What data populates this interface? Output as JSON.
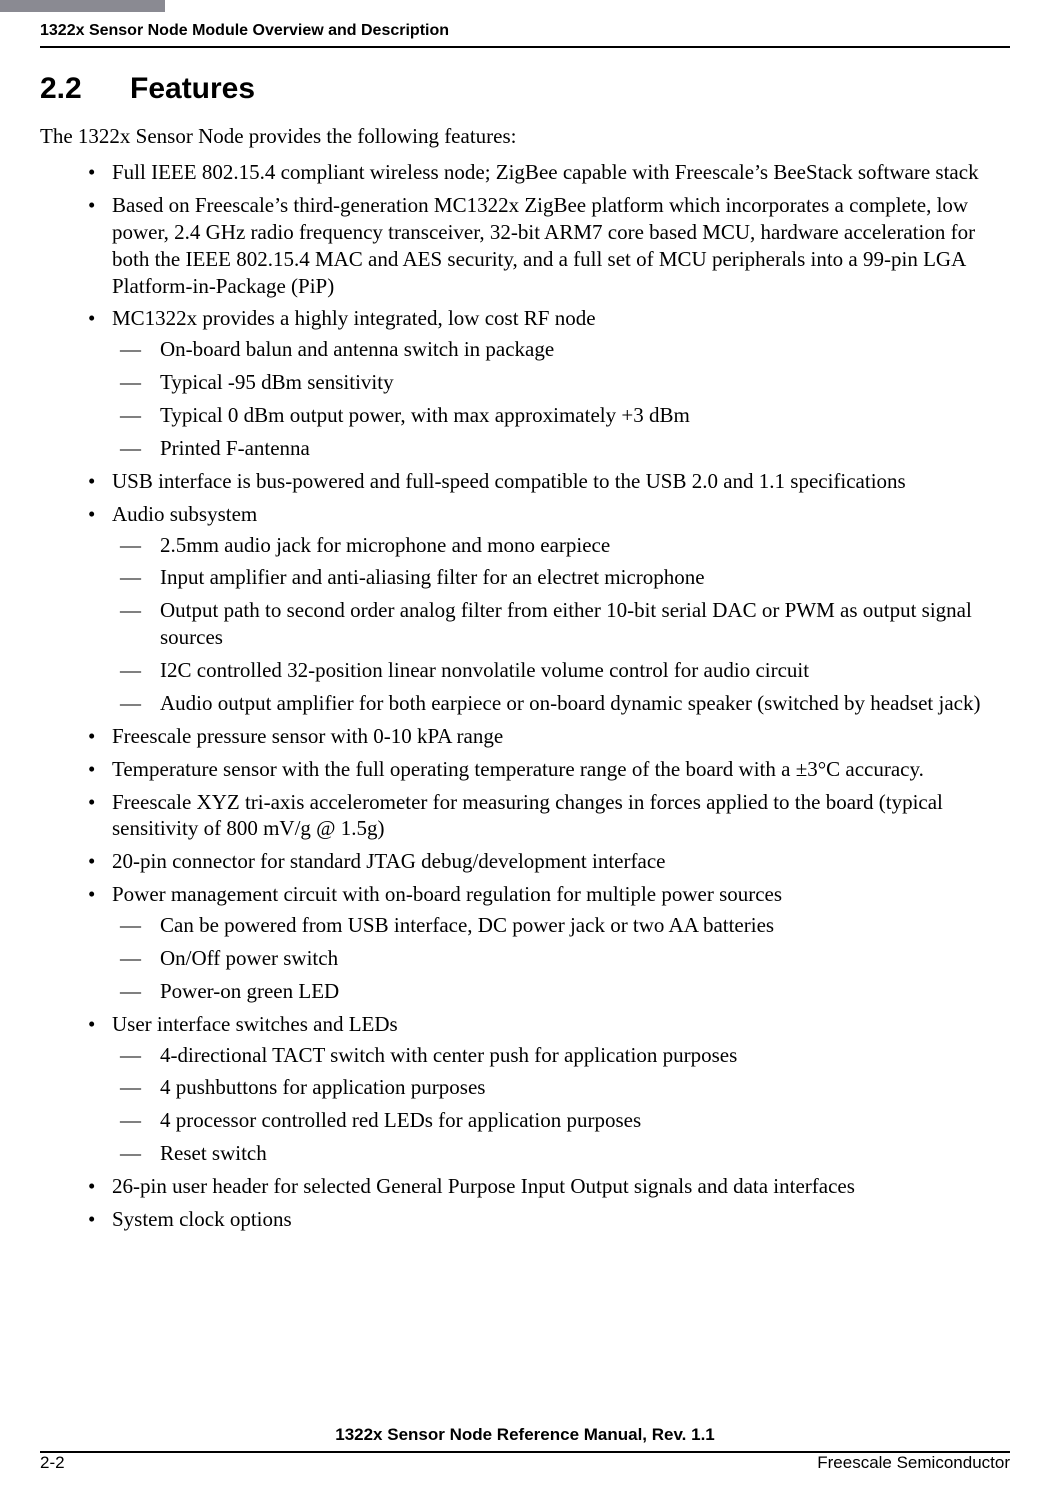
{
  "header": {
    "running_head": "1322x Sensor Node Module Overview and Description"
  },
  "section": {
    "number": "2.2",
    "title": "Features",
    "intro": "The 1322x Sensor Node provides the following features:"
  },
  "features": [
    {
      "text": "Full IEEE 802.15.4 compliant wireless node; ZigBee capable with Freescale’s BeeStack software stack"
    },
    {
      "text": "Based on Freescale’s third-generation MC1322x ZigBee platform which incorporates a complete, low power, 2.4 GHz radio frequency transceiver, 32-bit ARM7 core based MCU, hardware acceleration for both the IEEE 802.15.4 MAC and AES security, and a full set of MCU peripherals into a 99-pin LGA Platform-in-Package (PiP)"
    },
    {
      "text": "MC1322x provides a highly integrated, low cost RF node",
      "sub": [
        "On-board balun and antenna switch in package",
        "Typical -95 dBm sensitivity",
        "Typical 0 dBm output power, with max approximately +3 dBm",
        "Printed F-antenna"
      ]
    },
    {
      "text": "USB interface is bus-powered and full-speed compatible to the USB 2.0 and 1.1 specifications"
    },
    {
      "text": "Audio subsystem",
      "sub": [
        "2.5mm audio jack for microphone and mono earpiece",
        "Input amplifier and anti-aliasing filter for an electret microphone",
        "Output path to second order analog filter from either 10-bit serial DAC or PWM as output signal sources",
        "I2C controlled 32-position linear nonvolatile volume control for audio circuit",
        "Audio output amplifier for both earpiece or on-board dynamic speaker (switched by headset jack)"
      ]
    },
    {
      "text": "Freescale pressure sensor with 0-10 kPA range"
    },
    {
      "text": "Temperature sensor with the full operating temperature range of the board with a ±3°C accuracy."
    },
    {
      "text": "Freescale XYZ tri-axis accelerometer for measuring changes in forces applied to the board (typical sensitivity of 800 mV/g @ 1.5g)"
    },
    {
      "text": "20-pin connector for standard JTAG debug/development interface"
    },
    {
      "text": "Power management circuit with on-board regulation for multiple power sources",
      "sub": [
        "Can be powered from USB interface, DC power jack or two AA batteries",
        "On/Off power switch",
        "Power-on green LED"
      ]
    },
    {
      "text": "User interface switches and LEDs",
      "sub": [
        "4-directional TACT switch with center push for application purposes",
        "4 pushbuttons for application purposes",
        "4 processor controlled red LEDs for application purposes",
        "Reset switch"
      ]
    },
    {
      "text": "26-pin user header for selected General Purpose Input Output signals and data interfaces"
    },
    {
      "text": "System clock options"
    }
  ],
  "footer": {
    "doc_title": "1322x Sensor Node Reference Manual, Rev. 1.1",
    "page_num": "2-2",
    "company": "Freescale Semiconductor"
  },
  "colors": {
    "tab_bar": "#8a8a92",
    "text": "#000000",
    "background": "#ffffff"
  }
}
